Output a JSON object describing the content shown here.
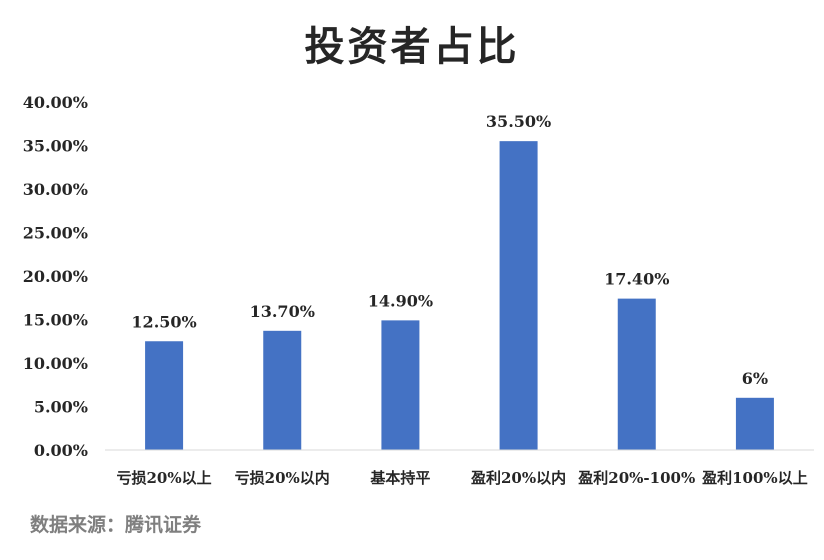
{
  "title": "投资者占比",
  "source": "数据来源：腾讯证券",
  "chart_data": {
    "type": "bar",
    "title": "投资者占比",
    "categories": [
      "亏损20%以上",
      "亏损20%以内",
      "基本持平",
      "盈利20%以内",
      "盈利20%-100%",
      "盈利100%以上"
    ],
    "values": [
      12.5,
      13.7,
      14.9,
      35.5,
      17.4,
      6
    ],
    "data_labels": [
      "12.50%",
      "13.70%",
      "14.90%",
      "35.50%",
      "17.40%",
      "6%"
    ],
    "ylim": [
      0,
      40
    ],
    "yticks": [
      0,
      5,
      10,
      15,
      20,
      25,
      30,
      35,
      40
    ],
    "ytick_labels": [
      "0.00%",
      "5.00%",
      "10.00%",
      "15.00%",
      "20.00%",
      "25.00%",
      "30.00%",
      "35.00%",
      "40.00%"
    ],
    "grid": false,
    "legend": "none",
    "bar_color": "#4472C4"
  }
}
